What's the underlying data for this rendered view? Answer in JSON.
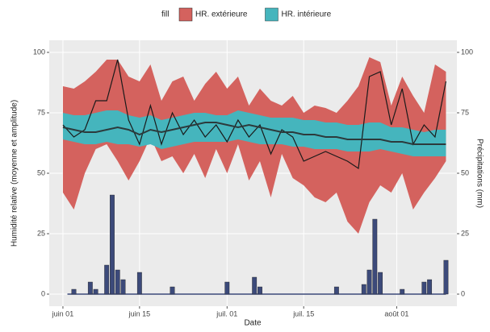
{
  "chart_data": {
    "type": "ribbon",
    "legend_title": "fill",
    "x_label": "Date",
    "y_label": "Humidité relative (moyenne et amplitude)",
    "y2_label": "Précipitations (mm)",
    "xlim": [
      -1.5,
      73
    ],
    "xticks": [
      {
        "value": 1,
        "label": "juin 01"
      },
      {
        "value": 15,
        "label": "juin 15"
      },
      {
        "value": 31,
        "label": "juil. 01"
      },
      {
        "value": 45,
        "label": "juil. 15"
      },
      {
        "value": 62,
        "label": "août 01"
      }
    ],
    "ylim": [
      -5,
      105
    ],
    "yticks": [
      0,
      25,
      50,
      75,
      100
    ],
    "y2lim": [
      -5,
      105
    ],
    "y2ticks": [
      0,
      25,
      50,
      75,
      100
    ],
    "grid": true,
    "x": [
      1,
      3,
      5,
      7,
      9,
      11,
      13,
      15,
      17,
      19,
      21,
      23,
      25,
      27,
      29,
      31,
      33,
      35,
      37,
      39,
      41,
      43,
      45,
      47,
      49,
      51,
      53,
      55,
      57,
      59,
      61,
      63,
      65,
      67,
      69,
      71
    ],
    "series": [
      {
        "name": "HR. extérieure",
        "color": "#d4625e",
        "line_color": "#1a1a1a",
        "high": [
          86,
          85,
          88,
          92,
          97,
          97,
          90,
          88,
          95,
          80,
          88,
          90,
          80,
          87,
          92,
          85,
          90,
          78,
          85,
          80,
          78,
          82,
          75,
          78,
          77,
          75,
          80,
          86,
          98,
          96,
          78,
          90,
          82,
          75,
          95,
          92
        ],
        "low": [
          42,
          35,
          50,
          60,
          62,
          55,
          47,
          55,
          65,
          55,
          57,
          50,
          58,
          48,
          60,
          50,
          62,
          47,
          55,
          40,
          58,
          48,
          45,
          40,
          38,
          42,
          30,
          25,
          38,
          45,
          42,
          50,
          35,
          42,
          48,
          55
        ],
        "values": [
          70,
          65,
          68,
          80,
          80,
          97,
          72,
          62,
          78,
          62,
          75,
          66,
          72,
          65,
          70,
          63,
          72,
          65,
          70,
          58,
          68,
          65,
          55,
          57,
          59,
          57,
          55,
          52,
          90,
          92,
          70,
          85,
          62,
          70,
          65,
          88
        ]
      },
      {
        "name": "HR. intérieure",
        "color": "#45b5bd",
        "line_color": "#2c3a3c",
        "high": [
          75,
          74,
          74,
          75,
          76,
          76,
          74,
          73,
          74,
          72,
          73,
          74,
          75,
          75,
          74,
          74,
          76,
          75,
          74,
          73,
          73,
          73,
          72,
          72,
          71,
          71,
          70,
          70,
          71,
          71,
          69,
          69,
          68,
          67,
          68,
          68
        ],
        "low": [
          64,
          63,
          62,
          62,
          63,
          62,
          62,
          61,
          62,
          60,
          61,
          62,
          63,
          63,
          63,
          63,
          64,
          63,
          62,
          62,
          62,
          61,
          61,
          60,
          60,
          60,
          59,
          59,
          59,
          60,
          59,
          58,
          57,
          57,
          57,
          57
        ],
        "values": [
          69,
          68,
          67,
          67,
          68,
          69,
          68,
          66,
          68,
          67,
          68,
          69,
          70,
          71,
          71,
          70,
          69,
          70,
          69,
          68,
          67,
          67,
          66,
          66,
          65,
          65,
          64,
          64,
          64,
          64,
          63,
          63,
          62,
          62,
          62,
          62
        ]
      }
    ],
    "bars": {
      "axis": "y2",
      "color": "#3c4a7a",
      "x": [
        3,
        6,
        7,
        9,
        10,
        11,
        12,
        15,
        21,
        31,
        36,
        37,
        51,
        56,
        57,
        58,
        59,
        63,
        67,
        68,
        71
      ],
      "values": [
        2,
        5,
        2,
        12,
        41,
        10,
        6,
        9,
        3,
        5,
        7,
        3,
        3,
        4,
        10,
        31,
        9,
        2,
        5,
        6,
        14
      ]
    }
  }
}
